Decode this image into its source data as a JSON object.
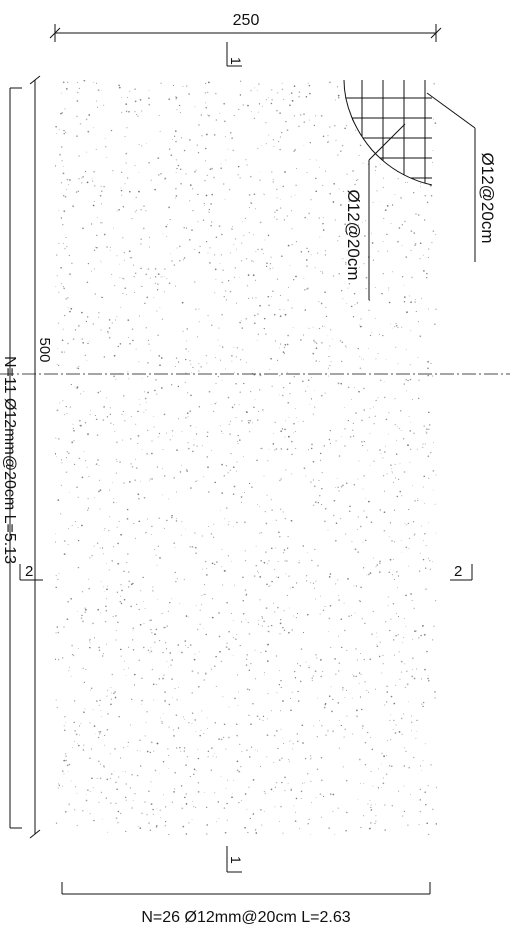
{
  "drawing": {
    "top_dimension": "250",
    "side_dimension": "500",
    "left_rebar_label": "N=11 Ø12mm@20cm L=5.13",
    "bottom_rebar_label": "N=26  Ø12mm@20cm L=2.63",
    "callout_outer": "Ø12@20cm",
    "callout_inner": "Ø12@20cm",
    "section_1_top": "1",
    "section_1_bottom": "1",
    "section_2_left": "2",
    "section_2_right": "2"
  },
  "colors": {
    "line": "#111111",
    "concrete_dots": "#6b6b6b",
    "panel_fill": "#ffffff"
  }
}
